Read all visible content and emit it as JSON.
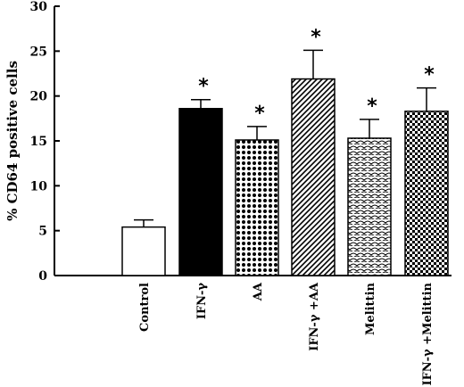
{
  "chart_data": {
    "type": "bar",
    "ylabel": "% CD64 positive cells",
    "ylim": [
      0,
      30
    ],
    "yticks": [
      0,
      5,
      10,
      15,
      20,
      25,
      30
    ],
    "categories": [
      "Control",
      "IFN-γ",
      "AA",
      "IFN-γ +AA",
      "Melittin",
      "IFN-γ +Melittin"
    ],
    "values": [
      5.4,
      18.6,
      15.1,
      21.9,
      15.3,
      18.3
    ],
    "errors": [
      0.8,
      1.0,
      1.5,
      3.2,
      2.1,
      2.6
    ],
    "significance": [
      "",
      "*",
      "*",
      "*",
      "*",
      "*"
    ],
    "fills": [
      "white",
      "solid-black",
      "dot-grid",
      "diagonal-hatch",
      "scale-hatch",
      "checker"
    ]
  }
}
